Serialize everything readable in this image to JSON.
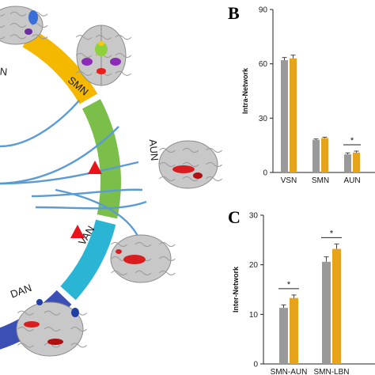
{
  "panel_b_letter": "B",
  "panel_c_letter": "C",
  "colors": {
    "series_a": "#999999",
    "series_b": "#E7A31A",
    "vsn": "#E8432E",
    "smn": "#F5B800",
    "aun": "#7BBE4A",
    "van": "#2BB5D4",
    "dan": "#3B4FB4",
    "connector": "#5B9BD5",
    "marker": "#E8141B",
    "brain_grey": "#C8C8C8"
  },
  "network_diagram": {
    "segments": [
      "N",
      "SMN",
      "AUN",
      "VAN",
      "DAN"
    ],
    "icons": [
      "brain-icon",
      "brain-icon",
      "brain-icon",
      "brain-icon",
      "brain-icon"
    ]
  },
  "chart_data": [
    {
      "type": "bar",
      "panel": "B",
      "title": "",
      "xlabel": "",
      "ylabel": "Intra-Network",
      "categories": [
        "VSN",
        "SMN",
        "AUN"
      ],
      "series": [
        {
          "values": [
            62,
            18,
            10
          ],
          "errors": [
            1.5,
            0.5,
            0.8
          ]
        },
        {
          "values": [
            63,
            19,
            11
          ],
          "errors": [
            1.8,
            0.5,
            0.8
          ]
        }
      ],
      "ylim": [
        0,
        90
      ],
      "yticks": [
        "0",
        "30",
        "60",
        "90"
      ],
      "significance": [
        "",
        "",
        "*"
      ],
      "grid": false
    },
    {
      "type": "bar",
      "panel": "C",
      "title": "",
      "xlabel": "",
      "ylabel": "Inter-Network",
      "categories": [
        "SMN-AUN",
        "SMN-LBN"
      ],
      "series": [
        {
          "values": [
            11.3,
            20.6
          ],
          "errors": [
            0.6,
            1.0
          ]
        },
        {
          "values": [
            13.3,
            23.2
          ],
          "errors": [
            0.6,
            1.0
          ]
        }
      ],
      "ylim": [
        0,
        30
      ],
      "yticks": [
        "0",
        "10",
        "20",
        "30"
      ],
      "significance": [
        "*",
        "*"
      ],
      "grid": false
    }
  ]
}
